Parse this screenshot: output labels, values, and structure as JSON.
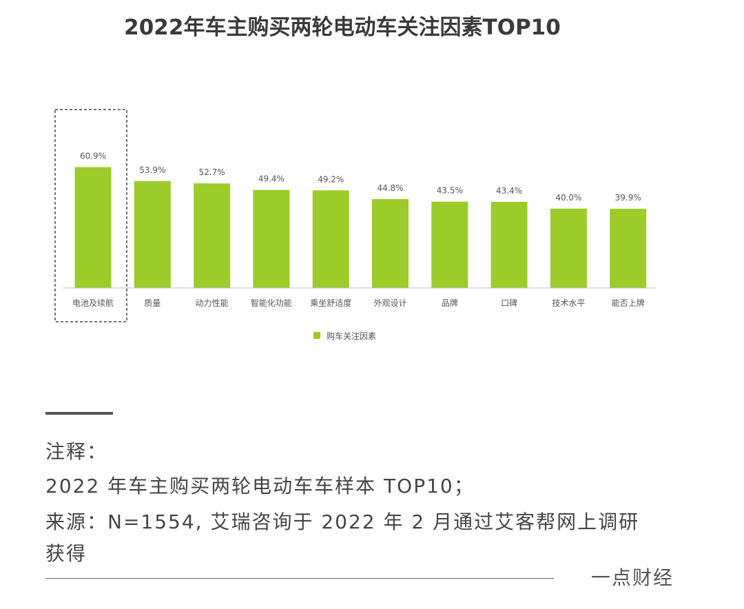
{
  "header": {
    "title": "2022年车主购买两轮电动车关注因素TOP10"
  },
  "chart_data": {
    "type": "bar",
    "categories": [
      "电池及续航",
      "质量",
      "动力性能",
      "智能化功能",
      "乘坐舒适度",
      "外观设计",
      "品牌",
      "口碑",
      "技术水平",
      "能否上牌"
    ],
    "series": [
      {
        "name": "购车关注因素",
        "values": [
          60.9,
          53.9,
          52.7,
          49.4,
          49.2,
          44.8,
          43.5,
          43.4,
          40.0,
          39.9
        ],
        "labels": [
          "60.9%",
          "53.9%",
          "52.7%",
          "49.4%",
          "49.2%",
          "44.8%",
          "43.5%",
          "43.4%",
          "40.0%",
          "39.9%"
        ]
      }
    ],
    "highlighted_category": "电池及续航",
    "legend_position": "bottom",
    "grid": false,
    "ylim": [
      0,
      100
    ],
    "colors": {
      "bar": "#9ccc2a"
    }
  },
  "notes": {
    "line1": "注释：",
    "line2": "2022 年车主购买两轮电动车车样本 TOP10；",
    "line3": "来源：N=1554, 艾瑞咨询于 2022 年 2 月通过艾客帮网上调研",
    "line4": "获得"
  },
  "footer": {
    "brand": "一点财经"
  }
}
